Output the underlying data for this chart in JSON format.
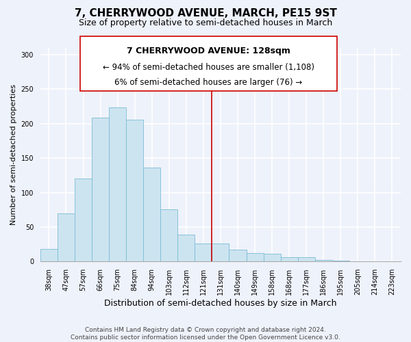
{
  "title": "7, CHERRYWOOD AVENUE, MARCH, PE15 9ST",
  "subtitle": "Size of property relative to semi-detached houses in March",
  "xlabel": "Distribution of semi-detached houses by size in March",
  "ylabel": "Number of semi-detached properties",
  "bar_labels": [
    "38sqm",
    "47sqm",
    "57sqm",
    "66sqm",
    "75sqm",
    "84sqm",
    "94sqm",
    "103sqm",
    "112sqm",
    "121sqm",
    "131sqm",
    "140sqm",
    "149sqm",
    "158sqm",
    "168sqm",
    "177sqm",
    "186sqm",
    "195sqm",
    "205sqm",
    "214sqm",
    "223sqm"
  ],
  "bar_values": [
    18,
    70,
    120,
    209,
    224,
    206,
    136,
    76,
    39,
    26,
    26,
    17,
    12,
    11,
    6,
    6,
    2,
    1,
    0,
    0,
    0
  ],
  "bar_color": "#cce4f0",
  "bar_edge_color": "#7bbcd5",
  "vline_color": "#cc0000",
  "annotation_title": "7 CHERRYWOOD AVENUE: 128sqm",
  "annotation_line1": "← 94% of semi-detached houses are smaller (1,108)",
  "annotation_line2": "6% of semi-detached houses are larger (76) →",
  "annotation_box_color": "#ffffff",
  "annotation_box_edge": "#cc0000",
  "ylim": [
    0,
    310
  ],
  "footer_line1": "Contains HM Land Registry data © Crown copyright and database right 2024.",
  "footer_line2": "Contains public sector information licensed under the Open Government Licence v3.0.",
  "background_color": "#eef2fa",
  "title_fontsize": 11,
  "subtitle_fontsize": 9,
  "ylabel_fontsize": 8,
  "xlabel_fontsize": 9,
  "annotation_title_fontsize": 9,
  "annotation_line_fontsize": 8.5,
  "tick_fontsize": 7,
  "footer_fontsize": 6.5
}
